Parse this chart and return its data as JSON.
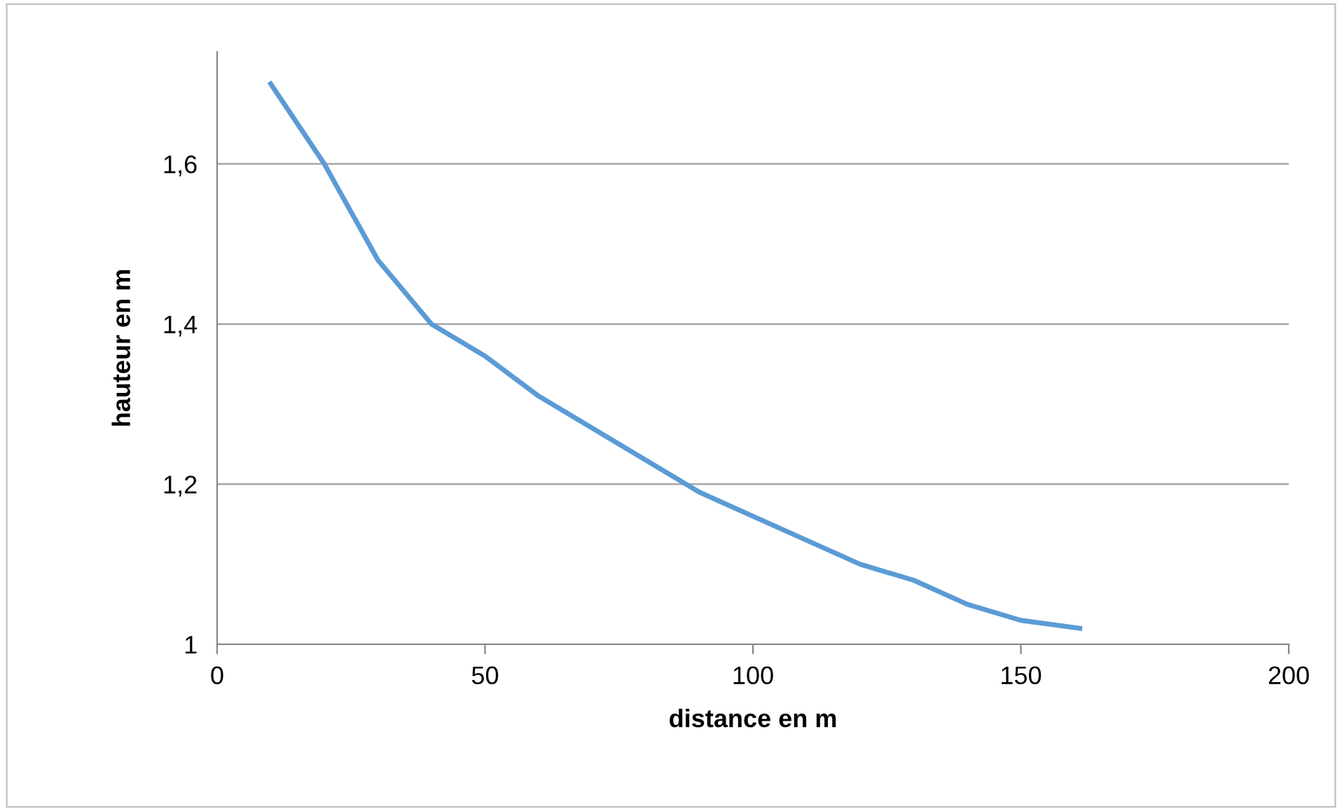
{
  "chart_data": {
    "type": "line",
    "xlabel": "distance en m",
    "ylabel": "hauteur en m",
    "x": [
      10,
      20,
      30,
      40,
      50,
      60,
      70,
      80,
      90,
      100,
      110,
      120,
      130,
      140,
      150,
      161
    ],
    "series": [
      {
        "color": "#5b9bd5",
        "values": [
          1.7,
          1.6,
          1.48,
          1.4,
          1.36,
          1.31,
          1.27,
          1.23,
          1.19,
          1.16,
          1.13,
          1.1,
          1.08,
          1.05,
          1.03,
          1.02
        ]
      }
    ],
    "xlim": [
      0,
      200
    ],
    "xticks": [
      0,
      50,
      100,
      150,
      200
    ],
    "ylim": [
      1,
      1.74
    ],
    "yticks": [
      {
        "value": 1,
        "label": "1"
      },
      {
        "value": 1.2,
        "label": "1,2"
      },
      {
        "value": 1.4,
        "label": "1,4"
      },
      {
        "value": 1.6,
        "label": "1,6"
      }
    ],
    "grid": "y",
    "legend": false,
    "marker": "none",
    "line_style": "solid"
  }
}
